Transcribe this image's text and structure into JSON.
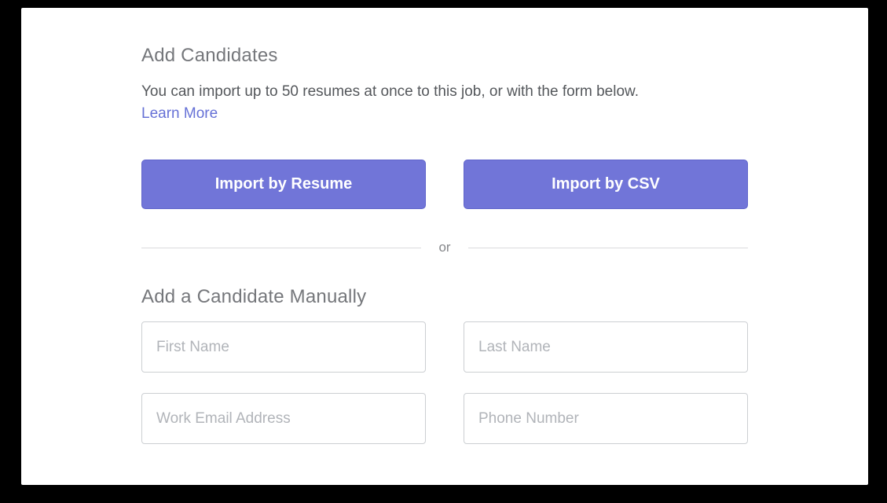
{
  "page": {
    "background_color": "#000000",
    "card_background_color": "#ffffff",
    "accent_color": "#7175d8"
  },
  "header": {
    "title": "Add Candidates",
    "description": "You can import up to 50 resumes at once to this job, or with the form below.",
    "learn_more_label": "Learn More"
  },
  "import_buttons": {
    "resume_label": "Import by Resume",
    "csv_label": "Import by CSV"
  },
  "divider": {
    "label": "or"
  },
  "manual_form": {
    "title": "Add a Candidate Manually",
    "fields": [
      {
        "name": "first-name",
        "placeholder": "First Name",
        "value": ""
      },
      {
        "name": "last-name",
        "placeholder": "Last Name",
        "value": ""
      },
      {
        "name": "work-email",
        "placeholder": "Work Email Address",
        "value": ""
      },
      {
        "name": "phone-number",
        "placeholder": "Phone Number",
        "value": ""
      }
    ]
  }
}
